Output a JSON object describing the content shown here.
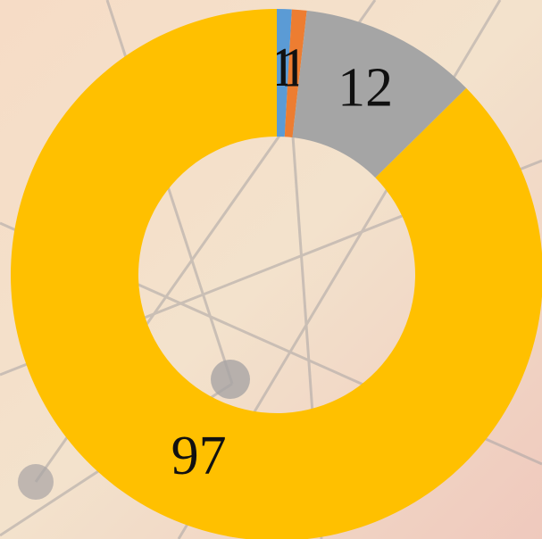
{
  "chart_data": {
    "type": "donut",
    "categories": [
      null,
      null,
      null,
      null
    ],
    "values": [
      1,
      1,
      12,
      97
    ],
    "colors": [
      "#5b9bd5",
      "#ed7d31",
      "#a5a5a5",
      "#ffc000"
    ]
  }
}
